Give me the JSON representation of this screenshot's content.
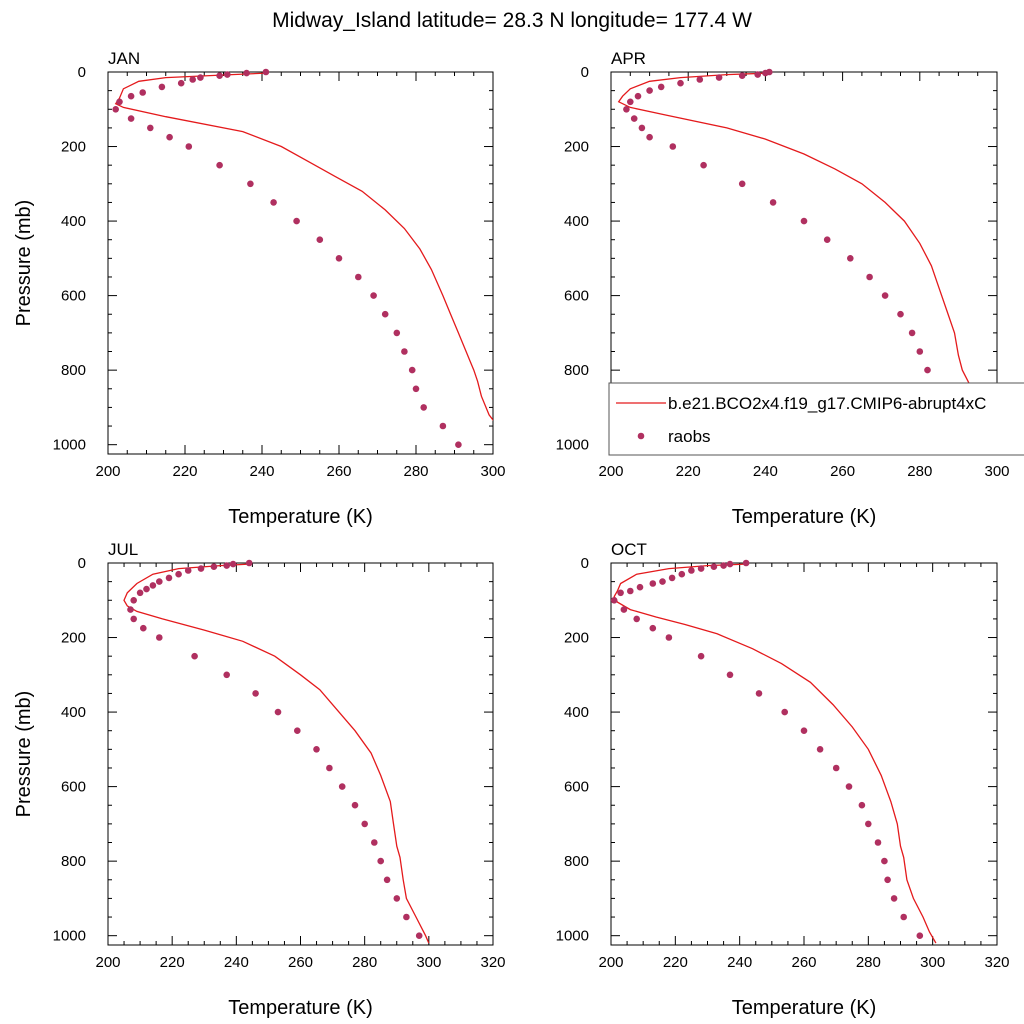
{
  "title": "Midway_Island  latitude= 28.3 N longitude= 177.4 W",
  "colors": {
    "model": "#e41a1c",
    "obs": "#b03060"
  },
  "legend": {
    "model_label": "b.e21.BCO2x4.f19_g17.CMIP6-abrupt4xC",
    "obs_label": "raobs",
    "placement": "over right side of APR panel"
  },
  "chart_data": [
    {
      "type": "line",
      "panel": "JAN",
      "xlabel": "Temperature (K)",
      "ylabel": "Pressure (mb)",
      "xlim": [
        200,
        300
      ],
      "ylim": [
        0,
        1025
      ],
      "y_reversed": true,
      "xticks": [
        200,
        220,
        240,
        260,
        280,
        300
      ],
      "yticks": [
        0,
        200,
        400,
        600,
        800,
        1000
      ],
      "series": [
        {
          "kind": "line",
          "color": "#e41a1c",
          "points": [
            [
              241,
              3
            ],
            [
              230,
              8
            ],
            [
              215,
              15
            ],
            [
              208,
              25
            ],
            [
              204,
              45
            ],
            [
              203,
              70
            ],
            [
              202,
              85
            ],
            [
              204,
              95
            ],
            [
              215,
              120
            ],
            [
              235,
              160
            ],
            [
              245,
              200
            ],
            [
              252,
              240
            ],
            [
              259,
              280
            ],
            [
              266,
              320
            ],
            [
              272,
              370
            ],
            [
              277,
              420
            ],
            [
              281,
              475
            ],
            [
              284,
              530
            ],
            [
              287,
              600
            ],
            [
              289,
              650
            ],
            [
              291,
              700
            ],
            [
              293,
              750
            ],
            [
              294,
              775
            ],
            [
              295,
              800
            ],
            [
              296,
              830
            ],
            [
              297,
              870
            ],
            [
              299,
              920
            ],
            [
              302,
              960
            ],
            [
              305,
              1000
            ],
            [
              306,
              1020
            ]
          ]
        },
        {
          "kind": "scatter",
          "color": "#b03060",
          "points": [
            [
              241,
              0
            ],
            [
              236,
              3
            ],
            [
              231,
              7
            ],
            [
              229,
              10
            ],
            [
              224,
              15
            ],
            [
              222,
              20
            ],
            [
              219,
              30
            ],
            [
              214,
              40
            ],
            [
              209,
              55
            ],
            [
              206,
              65
            ],
            [
              203,
              80
            ],
            [
              202,
              100
            ],
            [
              206,
              125
            ],
            [
              211,
              150
            ],
            [
              216,
              175
            ],
            [
              221,
              200
            ],
            [
              229,
              250
            ],
            [
              237,
              300
            ],
            [
              243,
              350
            ],
            [
              249,
              400
            ],
            [
              255,
              450
            ],
            [
              260,
              500
            ],
            [
              265,
              550
            ],
            [
              269,
              600
            ],
            [
              272,
              650
            ],
            [
              275,
              700
            ],
            [
              277,
              750
            ],
            [
              279,
              800
            ],
            [
              280,
              850
            ],
            [
              282,
              900
            ],
            [
              287,
              950
            ],
            [
              291,
              1000
            ]
          ]
        }
      ]
    },
    {
      "type": "line",
      "panel": "APR",
      "xlabel": "Temperature (K)",
      "ylabel": "",
      "xlim": [
        200,
        300
      ],
      "ylim": [
        0,
        1025
      ],
      "y_reversed": true,
      "xticks": [
        200,
        220,
        240,
        260,
        280,
        300
      ],
      "yticks": [
        0,
        200,
        400,
        600,
        800,
        1000
      ],
      "series": [
        {
          "kind": "line",
          "color": "#e41a1c",
          "points": [
            [
              241,
              3
            ],
            [
              230,
              7
            ],
            [
              218,
              15
            ],
            [
              210,
              25
            ],
            [
              205,
              45
            ],
            [
              203,
              65
            ],
            [
              202,
              80
            ],
            [
              205,
              95
            ],
            [
              214,
              115
            ],
            [
              230,
              150
            ],
            [
              240,
              180
            ],
            [
              250,
              220
            ],
            [
              258,
              260
            ],
            [
              265,
              300
            ],
            [
              271,
              350
            ],
            [
              276,
              400
            ],
            [
              280,
              460
            ],
            [
              283,
              520
            ],
            [
              285,
              580
            ],
            [
              287,
              640
            ],
            [
              289,
              700
            ],
            [
              290,
              760
            ],
            [
              291,
              800
            ],
            [
              293,
              840
            ],
            [
              295,
              890
            ],
            [
              298,
              940
            ],
            [
              301,
              990
            ],
            [
              303,
              1020
            ]
          ]
        },
        {
          "kind": "scatter",
          "color": "#b03060",
          "points": [
            [
              241,
              0
            ],
            [
              240,
              3
            ],
            [
              238,
              7
            ],
            [
              234,
              10
            ],
            [
              228,
              15
            ],
            [
              223,
              20
            ],
            [
              218,
              30
            ],
            [
              213,
              40
            ],
            [
              210,
              50
            ],
            [
              207,
              65
            ],
            [
              205,
              80
            ],
            [
              204,
              100
            ],
            [
              206,
              125
            ],
            [
              208,
              150
            ],
            [
              210,
              175
            ],
            [
              216,
              200
            ],
            [
              224,
              250
            ],
            [
              234,
              300
            ],
            [
              242,
              350
            ],
            [
              250,
              400
            ],
            [
              256,
              450
            ],
            [
              262,
              500
            ],
            [
              267,
              550
            ],
            [
              271,
              600
            ],
            [
              275,
              650
            ],
            [
              278,
              700
            ],
            [
              280,
              750
            ],
            [
              282,
              800
            ],
            [
              283,
              850
            ],
            [
              284,
              900
            ],
            [
              287,
              950
            ],
            [
              291,
              1000
            ]
          ]
        }
      ]
    },
    {
      "type": "line",
      "panel": "JUL",
      "xlabel": "Temperature (K)",
      "ylabel": "Pressure (mb)",
      "xlim": [
        200,
        320
      ],
      "ylim": [
        0,
        1025
      ],
      "y_reversed": true,
      "xticks": [
        200,
        220,
        240,
        260,
        280,
        300,
        320
      ],
      "yticks": [
        0,
        200,
        400,
        600,
        800,
        1000
      ],
      "series": [
        {
          "kind": "line",
          "color": "#e41a1c",
          "points": [
            [
              244,
              3
            ],
            [
              235,
              7
            ],
            [
              222,
              15
            ],
            [
              214,
              30
            ],
            [
              209,
              55
            ],
            [
              206,
              80
            ],
            [
              205,
              100
            ],
            [
              206,
              115
            ],
            [
              209,
              130
            ],
            [
              217,
              150
            ],
            [
              230,
              180
            ],
            [
              242,
              210
            ],
            [
              252,
              250
            ],
            [
              260,
              300
            ],
            [
              266,
              340
            ],
            [
              272,
              400
            ],
            [
              277,
              450
            ],
            [
              282,
              510
            ],
            [
              285,
              570
            ],
            [
              288,
              640
            ],
            [
              289,
              700
            ],
            [
              290,
              760
            ],
            [
              291,
              790
            ],
            [
              292,
              850
            ],
            [
              293,
              900
            ],
            [
              296,
              950
            ],
            [
              299,
              1000
            ],
            [
              300,
              1020
            ]
          ]
        },
        {
          "kind": "scatter",
          "color": "#b03060",
          "points": [
            [
              244,
              0
            ],
            [
              239,
              3
            ],
            [
              237,
              7
            ],
            [
              233,
              10
            ],
            [
              229,
              15
            ],
            [
              225,
              20
            ],
            [
              222,
              30
            ],
            [
              219,
              40
            ],
            [
              216,
              50
            ],
            [
              214,
              60
            ],
            [
              212,
              70
            ],
            [
              210,
              80
            ],
            [
              208,
              100
            ],
            [
              207,
              125
            ],
            [
              208,
              150
            ],
            [
              211,
              175
            ],
            [
              216,
              200
            ],
            [
              227,
              250
            ],
            [
              237,
              300
            ],
            [
              246,
              350
            ],
            [
              253,
              400
            ],
            [
              259,
              450
            ],
            [
              265,
              500
            ],
            [
              269,
              550
            ],
            [
              273,
              600
            ],
            [
              277,
              650
            ],
            [
              280,
              700
            ],
            [
              283,
              750
            ],
            [
              285,
              800
            ],
            [
              287,
              850
            ],
            [
              290,
              900
            ],
            [
              293,
              950
            ],
            [
              297,
              1000
            ]
          ]
        }
      ]
    },
    {
      "type": "line",
      "panel": "OCT",
      "xlabel": "Temperature (K)",
      "ylabel": "",
      "xlim": [
        200,
        320
      ],
      "ylim": [
        0,
        1025
      ],
      "y_reversed": true,
      "xticks": [
        200,
        220,
        240,
        260,
        280,
        300,
        320
      ],
      "yticks": [
        0,
        200,
        400,
        600,
        800,
        1000
      ],
      "series": [
        {
          "kind": "line",
          "color": "#e41a1c",
          "points": [
            [
              242,
              3
            ],
            [
              230,
              7
            ],
            [
              218,
              15
            ],
            [
              208,
              30
            ],
            [
              203,
              55
            ],
            [
              202,
              75
            ],
            [
              201,
              90
            ],
            [
              202,
              105
            ],
            [
              206,
              125
            ],
            [
              214,
              145
            ],
            [
              223,
              165
            ],
            [
              233,
              190
            ],
            [
              244,
              230
            ],
            [
              253,
              270
            ],
            [
              262,
              320
            ],
            [
              269,
              380
            ],
            [
              275,
              440
            ],
            [
              280,
              500
            ],
            [
              284,
              570
            ],
            [
              287,
              640
            ],
            [
              289,
              700
            ],
            [
              290,
              760
            ],
            [
              291,
              790
            ],
            [
              292,
              850
            ],
            [
              294,
              900
            ],
            [
              297,
              950
            ],
            [
              299,
              990
            ],
            [
              301,
              1020
            ]
          ]
        },
        {
          "kind": "scatter",
          "color": "#b03060",
          "points": [
            [
              242,
              0
            ],
            [
              237,
              3
            ],
            [
              235,
              7
            ],
            [
              232,
              10
            ],
            [
              228,
              15
            ],
            [
              225,
              20
            ],
            [
              222,
              30
            ],
            [
              219,
              40
            ],
            [
              216,
              50
            ],
            [
              213,
              55
            ],
            [
              209,
              65
            ],
            [
              206,
              75
            ],
            [
              203,
              80
            ],
            [
              201,
              100
            ],
            [
              204,
              125
            ],
            [
              208,
              150
            ],
            [
              213,
              175
            ],
            [
              218,
              200
            ],
            [
              228,
              250
            ],
            [
              237,
              300
            ],
            [
              246,
              350
            ],
            [
              254,
              400
            ],
            [
              260,
              450
            ],
            [
              265,
              500
            ],
            [
              270,
              550
            ],
            [
              274,
              600
            ],
            [
              278,
              650
            ],
            [
              280,
              700
            ],
            [
              283,
              750
            ],
            [
              285,
              800
            ],
            [
              286,
              850
            ],
            [
              288,
              900
            ],
            [
              291,
              950
            ],
            [
              296,
              1000
            ]
          ]
        }
      ]
    }
  ]
}
